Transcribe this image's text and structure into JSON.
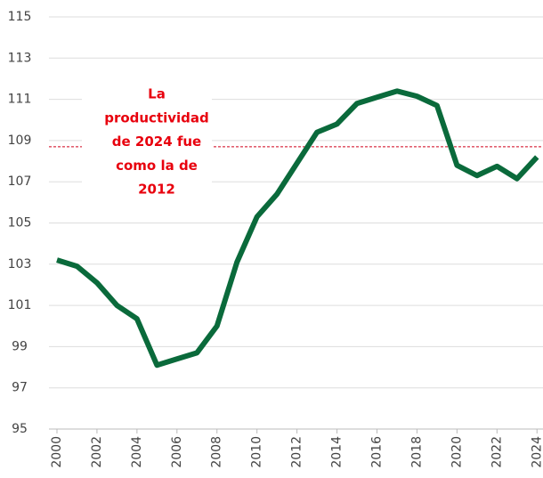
{
  "chart_data": {
    "type": "line",
    "x": [
      2000,
      2001,
      2002,
      2003,
      2004,
      2005,
      2006,
      2007,
      2008,
      2009,
      2010,
      2011,
      2012,
      2013,
      2014,
      2015,
      2016,
      2017,
      2018,
      2019,
      2020,
      2021,
      2022,
      2023,
      2024
    ],
    "series": [
      {
        "color": "#0a6a3b",
        "values": [
          103.2,
          102.9,
          102.1,
          101.0,
          100.35,
          98.1,
          98.4,
          98.7,
          100.0,
          103.1,
          105.3,
          106.4,
          107.9,
          109.4,
          109.8,
          110.8,
          111.1,
          111.4,
          111.15,
          110.7,
          107.8,
          107.3,
          107.75,
          107.15,
          108.2
        ]
      }
    ],
    "xlim": [
      1999.6,
      2024.3
    ],
    "xticks": [
      2000,
      2002,
      2004,
      2006,
      2008,
      2010,
      2012,
      2014,
      2016,
      2018,
      2020,
      2022,
      2024
    ],
    "ylim": [
      95,
      115
    ],
    "yticks": [
      95,
      97,
      99,
      101,
      103,
      105,
      107,
      109,
      111,
      113,
      115
    ],
    "grid": true,
    "reference_line": {
      "value": 108.7,
      "color": "#d0021b"
    },
    "annotation": {
      "lines": [
        "La",
        "productividad",
        "de 2024 fue",
        "como la de",
        "2012"
      ],
      "color": "#e8000d"
    }
  }
}
